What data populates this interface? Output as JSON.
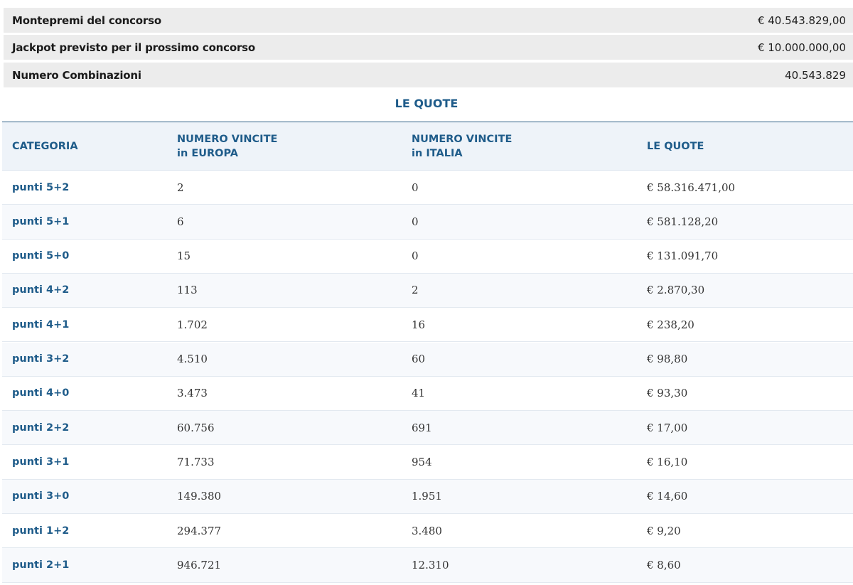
{
  "summary": [
    {
      "label": "Montepremi del concorso",
      "value": "€ 40.543.829,00"
    },
    {
      "label": "Jackpot previsto per il prossimo concorso",
      "value": "€ 10.000.000,00"
    },
    {
      "label": "Numero Combinazioni",
      "value": "40.543.829"
    }
  ],
  "section_title": "LE QUOTE",
  "table": {
    "headers": [
      [
        "CATEGORIA"
      ],
      [
        "NUMERO VINCITE",
        "in EUROPA"
      ],
      [
        "NUMERO VINCITE",
        "in ITALIA"
      ],
      [
        "LE QUOTE"
      ]
    ],
    "rows": [
      [
        "punti 5+2",
        "2",
        "0",
        "€ 58.316.471,00"
      ],
      [
        "punti 5+1",
        "6",
        "0",
        "€ 581.128,20"
      ],
      [
        "punti 5+0",
        "15",
        "0",
        "€ 131.091,70"
      ],
      [
        "punti 4+2",
        "113",
        "2",
        "€ 2.870,30"
      ],
      [
        "punti 4+1",
        "1.702",
        "16",
        "€ 238,20"
      ],
      [
        "punti 3+2",
        "4.510",
        "60",
        "€ 98,80"
      ],
      [
        "punti 4+0",
        "3.473",
        "41",
        "€ 93,30"
      ],
      [
        "punti 2+2",
        "60.756",
        "691",
        "€ 17,00"
      ],
      [
        "punti 3+1",
        "71.733",
        "954",
        "€ 16,10"
      ],
      [
        "punti 3+0",
        "149.380",
        "1.951",
        "€ 14,60"
      ],
      [
        "punti 1+2",
        "294.377",
        "3.480",
        "€ 9,20"
      ],
      [
        "punti 2+1",
        "946.721",
        "12.310",
        "€ 8,60"
      ]
    ]
  }
}
